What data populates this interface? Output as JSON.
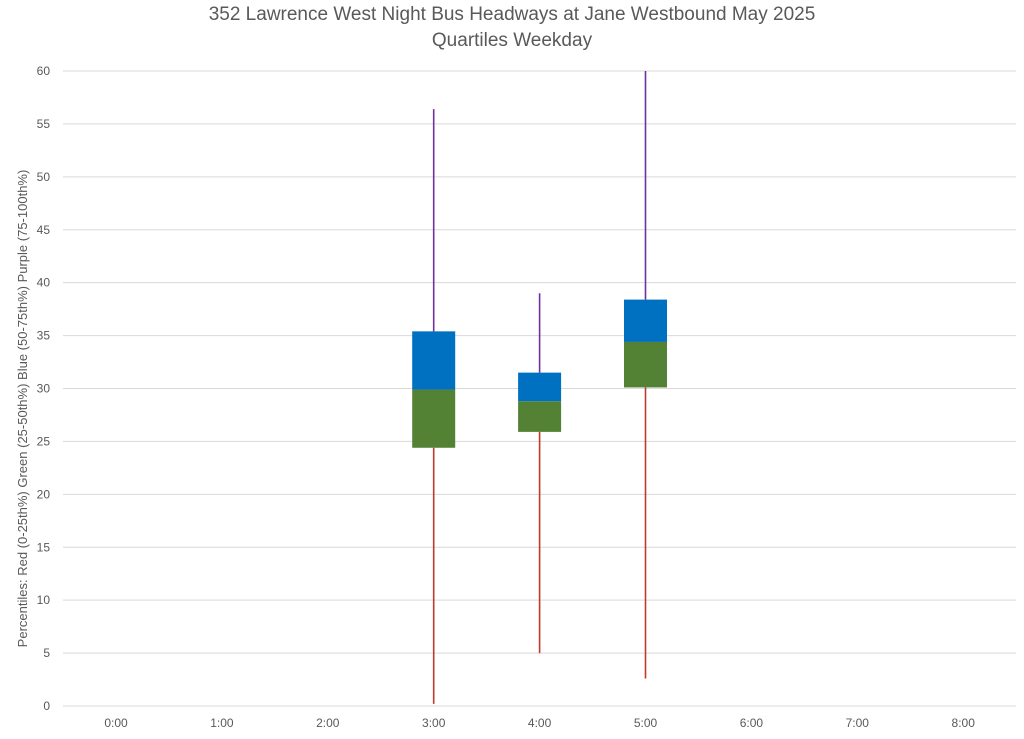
{
  "chart_data": {
    "type": "box",
    "title": "352 Lawrence West Night Bus Headways at Jane Westbound May 2025",
    "subtitle": "Quartiles Weekday",
    "ylabel": "Percentiles:  Red (0-25th%)  Green (25-50th%)  Blue (50-75th%)  Purple (75-100th%)",
    "xlabel": "",
    "ylim": [
      0,
      60
    ],
    "yticks": [
      "0",
      "5",
      "10",
      "15",
      "20",
      "25",
      "30",
      "35",
      "40",
      "45",
      "50",
      "55",
      "60"
    ],
    "categories": [
      "0:00",
      "1:00",
      "2:00",
      "3:00",
      "4:00",
      "5:00",
      "6:00",
      "7:00",
      "8:00"
    ],
    "grid": true,
    "colors": {
      "low_whisker": "#C0392B",
      "q1_median": "#548235",
      "median_q3": "#0070C0",
      "high_whisker": "#7030A0",
      "grid": "#D9D9D9",
      "text": "#595959"
    },
    "boxes": [
      {
        "category": "3:00",
        "min": 0.2,
        "q1": 24.4,
        "median": 29.9,
        "q3": 35.4,
        "max": 56.4
      },
      {
        "category": "4:00",
        "min": 5.0,
        "q1": 25.9,
        "median": 28.8,
        "q3": 31.5,
        "max": 39.0
      },
      {
        "category": "5:00",
        "min": 2.6,
        "q1": 30.1,
        "median": 34.4,
        "q3": 38.4,
        "max": 60.0
      }
    ]
  }
}
